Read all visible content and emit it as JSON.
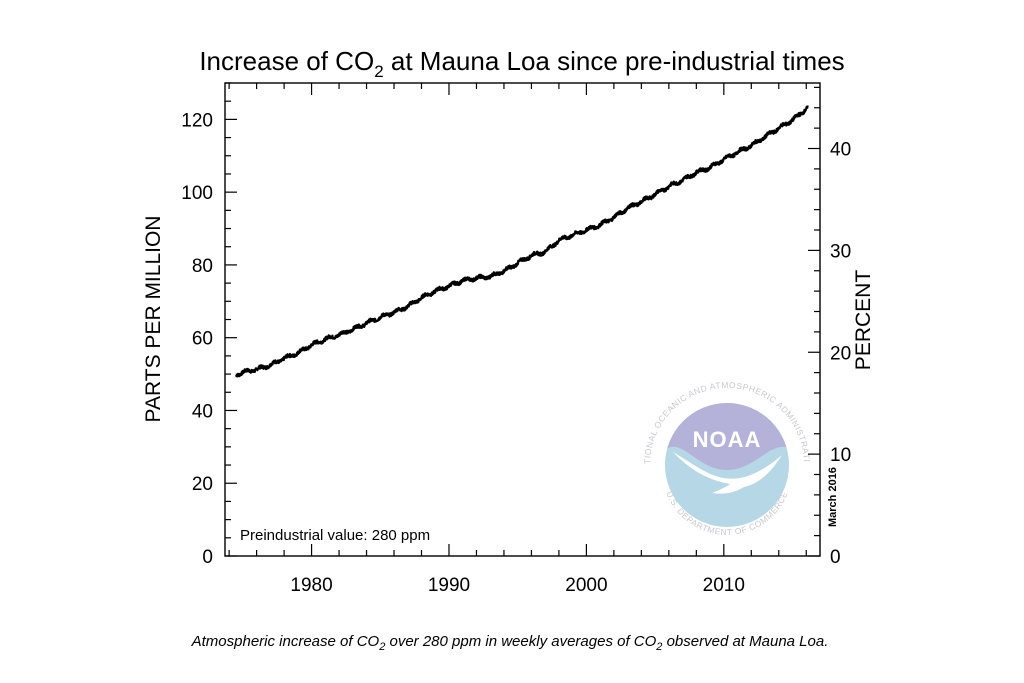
{
  "chart_data": {
    "type": "line",
    "title_parts": [
      "Increase of CO",
      "2",
      " at Mauna Loa since pre-industrial times"
    ],
    "ylabel": "PARTS PER MILLION",
    "ylabel_right": "PERCENT",
    "xlim": [
      1973.7,
      2017.0
    ],
    "ylim": [
      0,
      130
    ],
    "ylim_right": [
      0,
      46.43
    ],
    "x_ticks": [
      1980,
      1990,
      2000,
      2010
    ],
    "y_ticks": [
      0,
      20,
      40,
      60,
      80,
      100,
      120
    ],
    "y_ticks_right": [
      0,
      10,
      20,
      30,
      40
    ],
    "grid": false,
    "annotation": "Preindustrial value: 280 ppm",
    "date_stamp": "March 2016",
    "series": [
      {
        "x": [
          1974.5,
          1975,
          1976,
          1977,
          1978,
          1979,
          1980,
          1981,
          1982,
          1983,
          1984,
          1985,
          1986,
          1987,
          1988,
          1989,
          1990,
          1991,
          1992,
          1993,
          1994,
          1995,
          1996,
          1997,
          1998,
          1999,
          2000,
          2001,
          2002,
          2003,
          2004,
          2005,
          2006,
          2007,
          2008,
          2009,
          2010,
          2011,
          2012,
          2013,
          2014,
          2015,
          2016.1
        ],
        "y": [
          49.8,
          50.5,
          51.3,
          52.5,
          54.3,
          55.8,
          58.0,
          59.6,
          60.8,
          62.3,
          64.0,
          65.6,
          67.0,
          68.6,
          71.0,
          72.8,
          74.2,
          75.7,
          76.4,
          76.8,
          78.3,
          80.5,
          82.6,
          83.6,
          86.8,
          88.2,
          89.6,
          91.0,
          93.1,
          95.6,
          97.4,
          99.4,
          101.6,
          103.3,
          105.4,
          106.8,
          109.0,
          111.0,
          112.8,
          115.2,
          117.6,
          119.8,
          123.2
        ]
      }
    ]
  },
  "caption": {
    "p1": "Atmospheric increase of CO",
    "s1": "2",
    "p2": " over 280 ppm in weekly averages of CO",
    "s2": "2",
    "p3": " observed at Mauna Loa."
  },
  "logo": {
    "ring_text": "NATIONAL OCEANIC AND ATMOSPHERIC ADMINISTRATION",
    "ring_text_bottom": "U.S. DEPARTMENT OF COMMERCE",
    "wordmark": "NOAA",
    "colors": {
      "sky": "#b4b2d9",
      "sea": "#b6d7e6",
      "bird": "#ffffff"
    }
  },
  "colors": {
    "line": "#000000",
    "frame": "#000000",
    "background": "#ffffff"
  }
}
